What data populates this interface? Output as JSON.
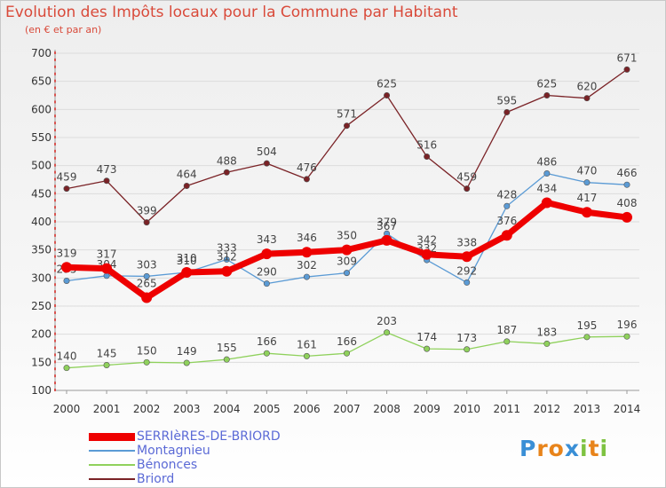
{
  "chart_data": {
    "type": "line",
    "title": "Evolution des Impôts locaux pour la Commune par Habitant",
    "subtitle": "(en € et par an)",
    "x": [
      "2000",
      "2001",
      "2002",
      "2003",
      "2004",
      "2005",
      "2006",
      "2007",
      "2008",
      "2009",
      "2010",
      "2011",
      "2012",
      "2013",
      "2014"
    ],
    "ylim": [
      100,
      700
    ],
    "yticks": [
      "100",
      "150",
      "200",
      "250",
      "300",
      "350",
      "400",
      "450",
      "500",
      "550",
      "600",
      "650",
      "700"
    ],
    "series": [
      {
        "name": "SERRIèRES-DE-BRIORD",
        "color": "#ee0000",
        "values": [
          319,
          317,
          265,
          310,
          312,
          343,
          346,
          350,
          367,
          342,
          338,
          376,
          434,
          417,
          408
        ],
        "labels": [
          "319",
          "317",
          "265",
          "310",
          "312",
          "343",
          "346",
          "350",
          "367",
          "342",
          "338",
          "376",
          "434",
          "417",
          "408"
        ]
      },
      {
        "name": "Montagnieu",
        "color": "#5b9bd5",
        "values": [
          295,
          304,
          303,
          310,
          333,
          290,
          302,
          309,
          379,
          332,
          292,
          428,
          486,
          470,
          466
        ],
        "labels": [
          "295",
          "304",
          "303",
          "310",
          "333",
          "290",
          "302",
          "309",
          "379",
          "332",
          "292",
          "428",
          "486",
          "470",
          "466"
        ]
      },
      {
        "name": "Bénonces",
        "color": "#8fd15c",
        "values": [
          140,
          145,
          150,
          149,
          155,
          166,
          161,
          166,
          203,
          174,
          173,
          187,
          183,
          195,
          196
        ],
        "labels": [
          "140",
          "145",
          "150",
          "149",
          "155",
          "166",
          "161",
          "166",
          "203",
          "174",
          "173",
          "187",
          "183",
          "195",
          "196"
        ]
      },
      {
        "name": "Briord",
        "color": "#7a2226",
        "values": [
          459,
          473,
          399,
          464,
          488,
          504,
          476,
          571,
          625,
          516,
          459,
          595,
          625,
          620,
          671
        ],
        "labels": [
          "459",
          "473",
          "399",
          "464",
          "488",
          "504",
          "476",
          "571",
          "625",
          "516",
          "459",
          "595",
          "625",
          "620",
          "671"
        ]
      }
    ]
  },
  "brand": {
    "letters": [
      "P",
      "r",
      "o",
      "x",
      "i",
      "t",
      "i"
    ],
    "colors": [
      "#3a8fd6",
      "#e8841b",
      "#e8841b",
      "#3a8fd6",
      "#7ec241",
      "#e8841b",
      "#7ec241"
    ]
  }
}
